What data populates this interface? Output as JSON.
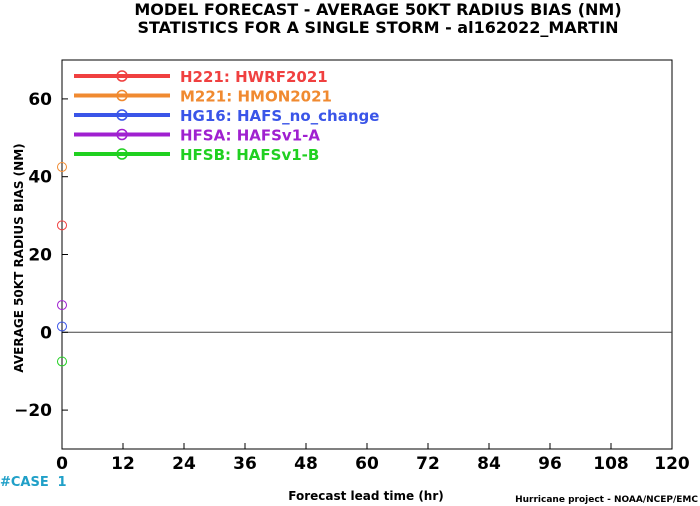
{
  "chart_data": {
    "type": "scatter",
    "title": "MODEL FORECAST - AVERAGE 50KT RADIUS BIAS (NM)",
    "subtitle": "STATISTICS FOR A SINGLE STORM - al162022_MARTIN",
    "xlabel": "Forecast lead time (hr)",
    "ylabel": "AVERAGE 50KT RADIUS BIAS (NM)",
    "xlim": [
      0,
      120
    ],
    "ylim": [
      -30,
      70
    ],
    "x_ticks": [
      0,
      12,
      24,
      36,
      48,
      60,
      72,
      84,
      96,
      108,
      120
    ],
    "y_ticks": [
      -20,
      0,
      20,
      40,
      60
    ],
    "grid": false,
    "legend_position": "top-left",
    "case_label": "#CASE",
    "case_counts": [
      1
    ],
    "credit": "Hurricane project - NOAA/NCEP/EMC",
    "series": [
      {
        "name": "H221: HWRF2021",
        "color": "#f04040",
        "x": [
          0
        ],
        "y": [
          27.5
        ]
      },
      {
        "name": "M221: HMON2021",
        "color": "#f08a30",
        "x": [
          0
        ],
        "y": [
          42.5
        ]
      },
      {
        "name": "HG16: HAFS_no_change",
        "color": "#3a55e8",
        "x": [
          0
        ],
        "y": [
          1.5
        ]
      },
      {
        "name": "HFSA: HAFSv1-A",
        "color": "#a020d0",
        "x": [
          0
        ],
        "y": [
          7
        ]
      },
      {
        "name": "HFSB: HAFSv1-B",
        "color": "#20d020",
        "x": [
          0
        ],
        "y": [
          -7.5
        ]
      }
    ]
  }
}
